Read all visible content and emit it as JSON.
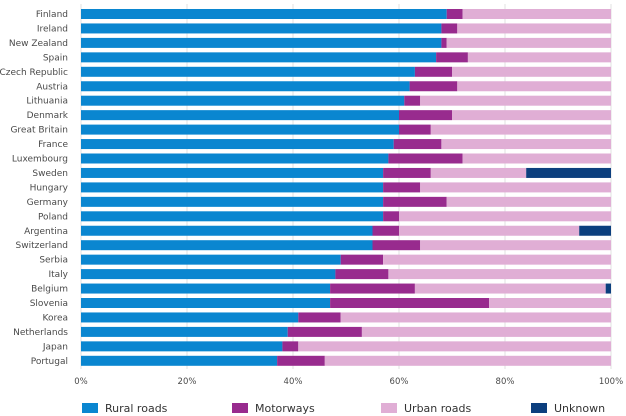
{
  "chart_data": {
    "type": "bar",
    "orientation": "horizontal",
    "stacked": "percent",
    "categories": [
      "Finland",
      "Ireland",
      "New Zealand",
      "Spain",
      "Czech Republic",
      "Austria",
      "Lithuania",
      "Denmark",
      "Great Britain",
      "France",
      "Luxembourg",
      "Sweden",
      "Hungary",
      "Germany",
      "Poland",
      "Argentina",
      "Switzerland",
      "Serbia",
      "Italy",
      "Belgium",
      "Slovenia",
      "Korea",
      "Netherlands",
      "Japan",
      "Portugal"
    ],
    "series": [
      {
        "name": "Rural roads",
        "color": "#0a86d0",
        "values": [
          69,
          68,
          68,
          67,
          63,
          62,
          61,
          60,
          60,
          59,
          58,
          57,
          57,
          57,
          57,
          55,
          55,
          49,
          48,
          47,
          47,
          41,
          39,
          38,
          37
        ]
      },
      {
        "name": "Motorways",
        "color": "#982b8e",
        "values": [
          3,
          3,
          1,
          6,
          7,
          9,
          3,
          10,
          6,
          9,
          14,
          9,
          7,
          12,
          3,
          5,
          9,
          8,
          10,
          16,
          30,
          8,
          14,
          3,
          9
        ]
      },
      {
        "name": "Urban roads",
        "color": "#e0aed5",
        "values": [
          28,
          29,
          31,
          27,
          30,
          29,
          36,
          30,
          34,
          32,
          28,
          18,
          36,
          31,
          40,
          34,
          36,
          43,
          42,
          36,
          23,
          51,
          47,
          59,
          54
        ]
      },
      {
        "name": "Unknown",
        "color": "#0c3f7e",
        "values": [
          0,
          0,
          0,
          0,
          0,
          0,
          0,
          0,
          0,
          0,
          0,
          16,
          0,
          0,
          0,
          6,
          0,
          0,
          0,
          1,
          0,
          0,
          0,
          0,
          0
        ]
      }
    ],
    "xlim": [
      0,
      100
    ],
    "x_ticks": [
      "0%",
      "20%",
      "40%",
      "60%",
      "80%",
      "100%"
    ],
    "grid": "vertical",
    "legend_position": "bottom"
  }
}
